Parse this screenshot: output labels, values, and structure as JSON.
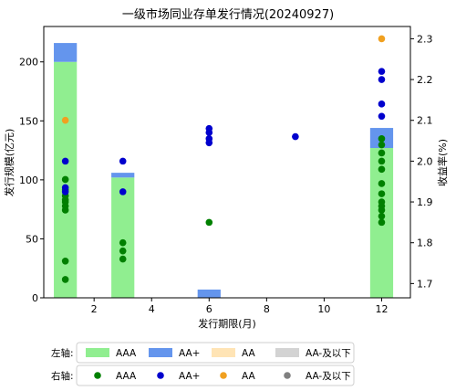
{
  "chart_data": {
    "type": "bar",
    "title": "一级市场同业存单发行情况(20240927)",
    "xlabel": "发行期限(月)",
    "ylabel_left": "发行规模(亿元)",
    "ylabel_right": "收益率(%)",
    "xlim": [
      0.25,
      13
    ],
    "ylim_left": [
      0,
      230
    ],
    "ylim_right": [
      1.665,
      2.33
    ],
    "x_ticks": [
      "2",
      "4",
      "6",
      "8",
      "10",
      "12"
    ],
    "x_tick_values": [
      2,
      4,
      6,
      8,
      10,
      12
    ],
    "y_left_ticks": [
      "0",
      "50",
      "100",
      "150",
      "200"
    ],
    "y_left_tick_values": [
      0,
      50,
      100,
      150,
      200
    ],
    "y_right_ticks": [
      "1.7",
      "1.8",
      "1.9",
      "2.0",
      "2.1",
      "2.2",
      "2.3"
    ],
    "y_right_tick_values": [
      1.7,
      1.8,
      1.9,
      2.0,
      2.1,
      2.2,
      2.3
    ],
    "bar_series": [
      {
        "name": "AAA",
        "color": "#90ee90",
        "points": [
          {
            "x": 1,
            "value": 200
          },
          {
            "x": 3,
            "value": 102
          },
          {
            "x": 6,
            "value": 0
          },
          {
            "x": 12,
            "value": 127
          }
        ]
      },
      {
        "name": "AA+",
        "color": "#6495ed",
        "points": [
          {
            "x": 1,
            "value": 16
          },
          {
            "x": 3,
            "value": 4
          },
          {
            "x": 6,
            "value": 7
          },
          {
            "x": 12,
            "value": 17
          }
        ]
      },
      {
        "name": "AA",
        "color": "#ffe4b5",
        "points": []
      },
      {
        "name": "AA-及以下",
        "color": "#d3d3d3",
        "points": []
      }
    ],
    "scatter_series": [
      {
        "name": "AAA",
        "color": "#008000",
        "points": [
          {
            "x": 1,
            "y": 1.955
          },
          {
            "x": 1,
            "y": 1.93
          },
          {
            "x": 1,
            "y": 1.915
          },
          {
            "x": 1,
            "y": 1.905
          },
          {
            "x": 1,
            "y": 1.9
          },
          {
            "x": 1,
            "y": 1.89
          },
          {
            "x": 1,
            "y": 1.88
          },
          {
            "x": 1,
            "y": 1.755
          },
          {
            "x": 1,
            "y": 1.71
          },
          {
            "x": 3,
            "y": 1.8
          },
          {
            "x": 3,
            "y": 1.78
          },
          {
            "x": 3,
            "y": 1.76
          },
          {
            "x": 6,
            "y": 1.85
          },
          {
            "x": 12,
            "y": 2.055
          },
          {
            "x": 12,
            "y": 2.04
          },
          {
            "x": 12,
            "y": 2.02
          },
          {
            "x": 12,
            "y": 2.0
          },
          {
            "x": 12,
            "y": 1.98
          },
          {
            "x": 12,
            "y": 1.945
          },
          {
            "x": 12,
            "y": 1.92
          },
          {
            "x": 12,
            "y": 1.9
          },
          {
            "x": 12,
            "y": 1.89
          },
          {
            "x": 12,
            "y": 1.88
          },
          {
            "x": 12,
            "y": 1.865
          },
          {
            "x": 12,
            "y": 1.85
          }
        ]
      },
      {
        "name": "AA+",
        "color": "#0000cd",
        "points": [
          {
            "x": 1,
            "y": 2.0
          },
          {
            "x": 1,
            "y": 1.935
          },
          {
            "x": 1,
            "y": 1.925
          },
          {
            "x": 3,
            "y": 2.0
          },
          {
            "x": 3,
            "y": 1.925
          },
          {
            "x": 6,
            "y": 2.08
          },
          {
            "x": 6,
            "y": 2.07
          },
          {
            "x": 6,
            "y": 2.055
          },
          {
            "x": 6,
            "y": 2.045
          },
          {
            "x": 9,
            "y": 2.06
          },
          {
            "x": 12,
            "y": 2.22
          },
          {
            "x": 12,
            "y": 2.2
          },
          {
            "x": 12,
            "y": 2.14
          },
          {
            "x": 12,
            "y": 2.11
          }
        ]
      },
      {
        "name": "AA",
        "color": "#f0a020",
        "points": [
          {
            "x": 1,
            "y": 2.1
          },
          {
            "x": 12,
            "y": 2.3
          }
        ]
      },
      {
        "name": "AA-及以下",
        "color": "#808080",
        "points": []
      }
    ],
    "legend": {
      "placement": "bottom",
      "left_axis_label": "左轴:",
      "right_axis_label": "右轴:"
    }
  }
}
